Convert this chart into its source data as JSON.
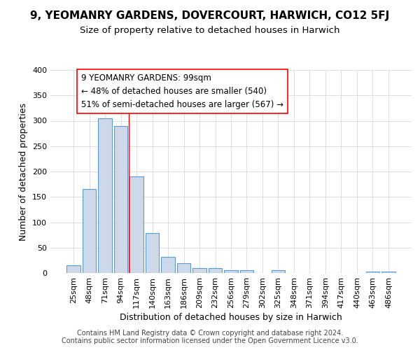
{
  "title": "9, YEOMANRY GARDENS, DOVERCOURT, HARWICH, CO12 5FJ",
  "subtitle": "Size of property relative to detached houses in Harwich",
  "xlabel": "Distribution of detached houses by size in Harwich",
  "ylabel": "Number of detached properties",
  "bar_color": "#cdd9e8",
  "bar_edge_color": "#5b9bd5",
  "categories": [
    "25sqm",
    "48sqm",
    "71sqm",
    "94sqm",
    "117sqm",
    "140sqm",
    "163sqm",
    "186sqm",
    "209sqm",
    "232sqm",
    "256sqm",
    "279sqm",
    "302sqm",
    "325sqm",
    "348sqm",
    "371sqm",
    "394sqm",
    "417sqm",
    "440sqm",
    "463sqm",
    "486sqm"
  ],
  "values": [
    15,
    165,
    305,
    290,
    190,
    79,
    32,
    20,
    10,
    10,
    5,
    5,
    0,
    5,
    0,
    0,
    0,
    0,
    0,
    3,
    3
  ],
  "red_line_x": 3.5,
  "annotation_text": "9 YEOMANRY GARDENS: 99sqm\n← 48% of detached houses are smaller (540)\n51% of semi-detached houses are larger (567) →",
  "footer": "Contains HM Land Registry data © Crown copyright and database right 2024.\nContains public sector information licensed under the Open Government Licence v3.0.",
  "ylim": [
    0,
    400
  ],
  "background_color": "#ffffff",
  "grid_color": "#dddddd",
  "title_fontsize": 11,
  "subtitle_fontsize": 9.5,
  "axis_label_fontsize": 9,
  "tick_fontsize": 8,
  "footer_fontsize": 7,
  "annotation_fontsize": 8.5
}
